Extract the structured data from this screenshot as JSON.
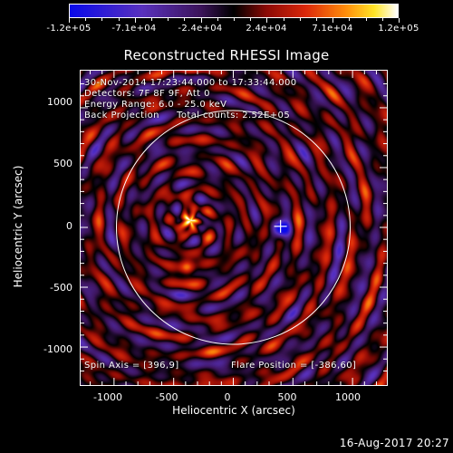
{
  "colorbar": {
    "ticks": [
      "-1.2e+05",
      "-7.1e+04",
      "-2.4e+04",
      "2.4e+04",
      "7.1e+04",
      "1.2e+05"
    ],
    "range": [
      -120000,
      120000
    ]
  },
  "info": {
    "time": "30-Nov-2014 17:23:44.000 to 17:33:44.000",
    "detectors": "Detectors: 7F 8F 9F, Att 0",
    "energy": "Energy Range: 6.0 - 25.0 keV",
    "method": "Back Projection",
    "counts": "Total counts: 2.52E+05",
    "spin_axis": "Spin Axis = [396,9]",
    "flare_position": "Flare Position = [-386,60]"
  },
  "footer": {
    "date": "16-Aug-2017 20:27"
  },
  "chart_data": {
    "type": "heatmap",
    "title": "Reconstructed RHESSI Image",
    "xlabel": "Heliocentric X (arcsec)",
    "ylabel": "Heliocentric Y (arcsec)",
    "xlim": [
      -1280,
      1280
    ],
    "ylim": [
      -1310,
      1310
    ],
    "xticks": [
      "-1000",
      "-500",
      "0",
      "500",
      "1000"
    ],
    "xtick_values": [
      -1000,
      -500,
      0,
      500,
      1000
    ],
    "yticks": [
      "1000",
      "500",
      "0",
      "-500",
      "-1000"
    ],
    "ytick_values": [
      1000,
      500,
      0,
      -500,
      -1000
    ],
    "colormap": "blue-black-red-yellow-white",
    "solar_limb": {
      "center": [
        0,
        0
      ],
      "radius_arcsec": 980
    },
    "marker": {
      "type": "cross",
      "x": 396,
      "y": 9
    },
    "bright_sources": [
      {
        "x": -360,
        "y": 60,
        "intensity": 120000
      },
      {
        "x": -390,
        "y": -330,
        "intensity": 110000
      }
    ],
    "dark_source": {
      "x": 396,
      "y": -10,
      "intensity": -120000
    }
  }
}
